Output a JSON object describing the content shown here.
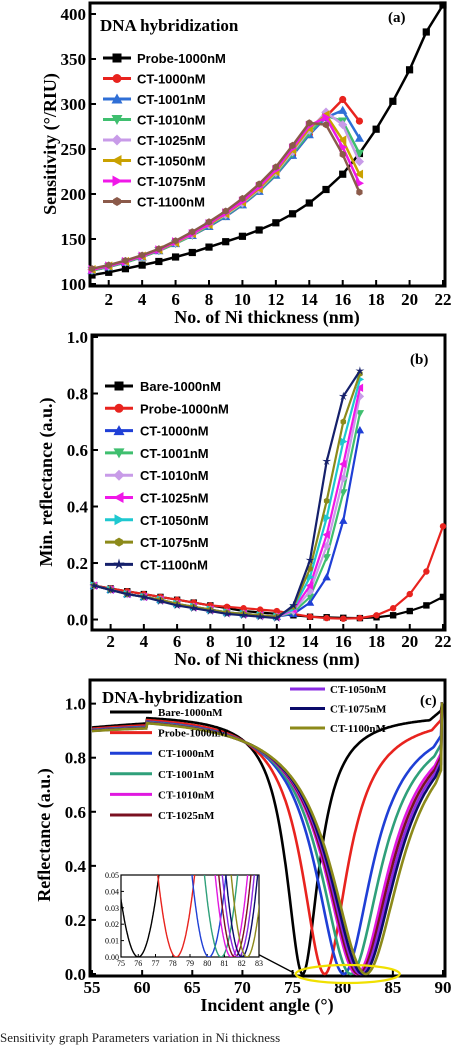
{
  "caption": "Sensitivity graph  Parameters variation in Ni thickness",
  "chart_data": [
    {
      "type": "line",
      "panel_label": "(a)",
      "title": "DNA hybridization",
      "xlabel": "No. of Ni thickness (nm)",
      "ylabel": "Sensitivity (°/RIU)",
      "xlim": [
        1,
        22
      ],
      "ylim": [
        100,
        410
      ],
      "xticks": [
        2,
        4,
        6,
        8,
        10,
        12,
        14,
        16,
        18,
        20,
        22
      ],
      "yticks": [
        100,
        150,
        200,
        250,
        300,
        350,
        400
      ],
      "legend_position": "top-left",
      "series": [
        {
          "name": "Probe-1000nM",
          "color": "#000000",
          "marker": "square",
          "x": [
            1,
            2,
            3,
            4,
            5,
            6,
            7,
            8,
            9,
            10,
            11,
            12,
            13,
            14,
            15,
            16,
            17,
            18,
            19,
            20,
            21,
            22
          ],
          "y": [
            110,
            113,
            117,
            121,
            125,
            130,
            135,
            141,
            147,
            153,
            160,
            168,
            178,
            190,
            205,
            222,
            245,
            272,
            303,
            338,
            380,
            410
          ]
        },
        {
          "name": "CT-1000nM",
          "color": "#e8231e",
          "marker": "circle",
          "x": [
            1,
            2,
            3,
            4,
            5,
            6,
            7,
            8,
            9,
            10,
            11,
            12,
            13,
            14,
            15,
            16,
            17
          ],
          "y": [
            115,
            119,
            124,
            130,
            137,
            145,
            154,
            164,
            175,
            188,
            203,
            221,
            243,
            266,
            286,
            305,
            281
          ]
        },
        {
          "name": "CT-1001nM",
          "color": "#2f6fd6",
          "marker": "triangle-up",
          "x": [
            1,
            2,
            3,
            4,
            5,
            6,
            7,
            8,
            9,
            10,
            11,
            12,
            13,
            14,
            15,
            16,
            17
          ],
          "y": [
            115,
            119,
            124,
            130,
            137,
            145,
            154,
            164,
            175,
            188,
            203,
            221,
            243,
            266,
            285,
            293,
            262
          ]
        },
        {
          "name": "CT-1010nM",
          "color": "#3fbf6f",
          "marker": "triangle-down",
          "x": [
            1,
            2,
            3,
            4,
            5,
            6,
            7,
            8,
            9,
            10,
            11,
            12,
            13,
            14,
            15,
            16,
            17
          ],
          "y": [
            115,
            119,
            124,
            130,
            137,
            145,
            154,
            165,
            176,
            189,
            204,
            222,
            245,
            268,
            287,
            281,
            245
          ]
        },
        {
          "name": "CT-1025nM",
          "color": "#c89be8",
          "marker": "diamond",
          "x": [
            1,
            2,
            3,
            4,
            5,
            6,
            7,
            8,
            9,
            10,
            11,
            12,
            13,
            14,
            15,
            16,
            17
          ],
          "y": [
            116,
            120,
            125,
            131,
            138,
            146,
            155,
            166,
            177,
            190,
            205,
            224,
            247,
            271,
            291,
            277,
            236
          ]
        },
        {
          "name": "CT-1050nM",
          "color": "#c9a100",
          "marker": "triangle-left",
          "x": [
            1,
            2,
            3,
            4,
            5,
            6,
            7,
            8,
            9,
            10,
            11,
            12,
            13,
            14,
            15,
            16,
            17
          ],
          "y": [
            116,
            120,
            125,
            131,
            138,
            146,
            156,
            166,
            178,
            191,
            206,
            225,
            249,
            273,
            288,
            260,
            222
          ]
        },
        {
          "name": "CT-1075nM",
          "color": "#f018e8",
          "marker": "triangle-right",
          "x": [
            1,
            2,
            3,
            4,
            5,
            6,
            7,
            8,
            9,
            10,
            11,
            12,
            13,
            14,
            15,
            16,
            17
          ],
          "y": [
            116,
            120,
            125,
            131,
            138,
            147,
            156,
            167,
            179,
            192,
            208,
            227,
            251,
            276,
            285,
            252,
            212
          ]
        },
        {
          "name": "CT-1100nM",
          "color": "#8b5a4a",
          "marker": "hexagon",
          "x": [
            1,
            2,
            3,
            4,
            5,
            6,
            7,
            8,
            9,
            10,
            11,
            12,
            13,
            14,
            15,
            16,
            17
          ],
          "y": [
            117,
            121,
            126,
            132,
            139,
            148,
            158,
            169,
            181,
            195,
            211,
            230,
            254,
            279,
            277,
            244,
            202
          ]
        }
      ]
    },
    {
      "type": "line",
      "panel_label": "(b)",
      "xlabel": "No. of Ni thickness (nm)",
      "ylabel": "Min. reflectance (a.u.)",
      "xlim": [
        1,
        22
      ],
      "ylim": [
        -0.03,
        1.0
      ],
      "xticks": [
        2,
        4,
        6,
        8,
        10,
        12,
        14,
        16,
        18,
        20,
        22
      ],
      "yticks": [
        "0.0",
        "0.2",
        "0.4",
        "0.6",
        "0.8",
        "1.0"
      ],
      "legend_position": "left",
      "series": [
        {
          "name": "Bare-1000nM",
          "color": "#000000",
          "marker": "square",
          "x": [
            1,
            2,
            3,
            4,
            5,
            6,
            7,
            8,
            9,
            10,
            11,
            12,
            13,
            14,
            15,
            16,
            17,
            18,
            19,
            20,
            21,
            22
          ],
          "y": [
            0.12,
            0.11,
            0.1,
            0.09,
            0.08,
            0.07,
            0.06,
            0.05,
            0.04,
            0.03,
            0.025,
            0.02,
            0.015,
            0.01,
            0.008,
            0.006,
            0.005,
            0.008,
            0.015,
            0.03,
            0.05,
            0.08
          ]
        },
        {
          "name": "Probe-1000nM",
          "color": "#e8231e",
          "marker": "circle",
          "x": [
            1,
            2,
            3,
            4,
            5,
            6,
            7,
            8,
            9,
            10,
            11,
            12,
            13,
            14,
            15,
            16,
            17,
            18,
            19,
            20,
            21,
            22
          ],
          "y": [
            0.12,
            0.11,
            0.1,
            0.09,
            0.08,
            0.07,
            0.06,
            0.05,
            0.045,
            0.04,
            0.035,
            0.03,
            0.02,
            0.01,
            0.005,
            0.003,
            0.005,
            0.015,
            0.04,
            0.09,
            0.17,
            0.33
          ]
        },
        {
          "name": "CT-1000nM",
          "color": "#1f3fd6",
          "marker": "triangle-up",
          "x": [
            1,
            2,
            3,
            4,
            5,
            6,
            7,
            8,
            9,
            10,
            11,
            12,
            13,
            14,
            15,
            16,
            17
          ],
          "y": [
            0.12,
            0.105,
            0.09,
            0.08,
            0.07,
            0.055,
            0.045,
            0.035,
            0.025,
            0.02,
            0.015,
            0.01,
            0.02,
            0.06,
            0.15,
            0.35,
            0.67
          ]
        },
        {
          "name": "CT-1001nM",
          "color": "#3fbf6f",
          "marker": "triangle-down",
          "x": [
            1,
            2,
            3,
            4,
            5,
            6,
            7,
            8,
            9,
            10,
            11,
            12,
            13,
            14,
            15,
            16,
            17
          ],
          "y": [
            0.12,
            0.105,
            0.09,
            0.08,
            0.07,
            0.055,
            0.045,
            0.035,
            0.025,
            0.02,
            0.015,
            0.01,
            0.025,
            0.08,
            0.22,
            0.45,
            0.73
          ]
        },
        {
          "name": "CT-1010nM",
          "color": "#c89be8",
          "marker": "diamond",
          "x": [
            1,
            2,
            3,
            4,
            5,
            6,
            7,
            8,
            9,
            10,
            11,
            12,
            13,
            14,
            15,
            16,
            17
          ],
          "y": [
            0.12,
            0.105,
            0.09,
            0.08,
            0.07,
            0.055,
            0.045,
            0.035,
            0.025,
            0.02,
            0.015,
            0.01,
            0.03,
            0.1,
            0.26,
            0.5,
            0.79
          ]
        },
        {
          "name": "CT-1025nM",
          "color": "#f018e8",
          "marker": "triangle-left",
          "x": [
            1,
            2,
            3,
            4,
            5,
            6,
            7,
            8,
            9,
            10,
            11,
            12,
            13,
            14,
            15,
            16,
            17
          ],
          "y": [
            0.12,
            0.105,
            0.09,
            0.08,
            0.07,
            0.055,
            0.045,
            0.035,
            0.025,
            0.02,
            0.015,
            0.01,
            0.035,
            0.12,
            0.3,
            0.55,
            0.82
          ]
        },
        {
          "name": "CT-1050nM",
          "color": "#1fc8d0",
          "marker": "triangle-right",
          "x": [
            1,
            2,
            3,
            4,
            5,
            6,
            7,
            8,
            9,
            10,
            11,
            12,
            13,
            14,
            15,
            16,
            17
          ],
          "y": [
            0.12,
            0.105,
            0.09,
            0.08,
            0.07,
            0.055,
            0.045,
            0.035,
            0.025,
            0.02,
            0.015,
            0.01,
            0.04,
            0.15,
            0.36,
            0.63,
            0.85
          ]
        },
        {
          "name": "CT-1075nM",
          "color": "#8c8a1a",
          "marker": "hexagon",
          "x": [
            1,
            2,
            3,
            4,
            5,
            6,
            7,
            8,
            9,
            10,
            11,
            12,
            13,
            14,
            15,
            16,
            17
          ],
          "y": [
            0.12,
            0.105,
            0.09,
            0.08,
            0.07,
            0.055,
            0.045,
            0.035,
            0.025,
            0.02,
            0.015,
            0.01,
            0.045,
            0.18,
            0.42,
            0.7,
            0.87
          ]
        },
        {
          "name": "CT-1100nM",
          "color": "#15206b",
          "marker": "star",
          "x": [
            1,
            2,
            3,
            4,
            5,
            6,
            7,
            8,
            9,
            10,
            11,
            12,
            13,
            14,
            15,
            16,
            17
          ],
          "y": [
            0.12,
            0.105,
            0.09,
            0.08,
            0.065,
            0.05,
            0.04,
            0.03,
            0.02,
            0.015,
            0.01,
            0.005,
            0.05,
            0.21,
            0.56,
            0.79,
            0.88
          ]
        }
      ]
    },
    {
      "type": "line",
      "panel_label": "(c)",
      "title": "DNA-hybridization",
      "xlabel": "Incident angle (°)",
      "ylabel": "Reflectance (a.u.)",
      "xlim": [
        55,
        90
      ],
      "ylim": [
        0,
        1.08
      ],
      "xticks": [
        "55",
        "60",
        "65",
        "70",
        "75",
        "80",
        "85",
        "90"
      ],
      "yticks": [
        "0.0",
        "0.2",
        "0.4",
        "0.6",
        "0.8",
        "1.0"
      ],
      "legend_position": "center and top-right",
      "series": [
        {
          "name": "Bare-1000nM",
          "color": "#000000",
          "resonance_angle": 76.0
        },
        {
          "name": "Probe-1000nM",
          "color": "#e8231e",
          "resonance_angle": 78.2
        },
        {
          "name": "CT-1000nM",
          "color": "#1f3fd6",
          "resonance_angle": 80.1
        },
        {
          "name": "CT-1001nM",
          "color": "#2fa07a",
          "resonance_angle": 80.8
        },
        {
          "name": "CT-1010nM",
          "color": "#e018e0",
          "resonance_angle": 81.4
        },
        {
          "name": "CT-1025nM",
          "color": "#7a1020",
          "resonance_angle": 81.6
        },
        {
          "name": "CT-1050nM",
          "color": "#8a2be2",
          "resonance_angle": 81.8
        },
        {
          "name": "CT-1075nM",
          "color": "#0a0a6a",
          "resonance_angle": 82.0
        },
        {
          "name": "CT-1100nM",
          "color": "#8c8a1a",
          "resonance_angle": 82.3
        }
      ],
      "inset": {
        "xlim": [
          75,
          83
        ],
        "ylim": [
          0,
          0.05
        ],
        "xticks": [
          "75",
          "76",
          "77",
          "78",
          "79",
          "80",
          "81",
          "82",
          "83"
        ],
        "yticks": [
          "0.00",
          "0.01",
          "0.02",
          "0.03",
          "0.04",
          "0.05"
        ]
      }
    }
  ]
}
